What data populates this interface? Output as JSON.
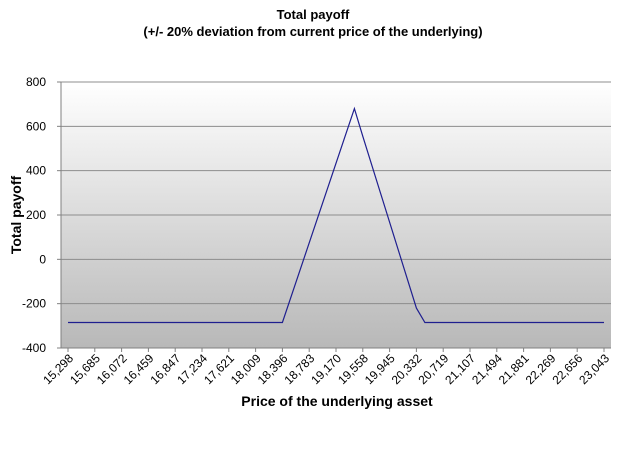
{
  "chart_data": {
    "type": "line",
    "title": "Total payoff",
    "subtitle": "(+/- 20% deviation from current price of the underlying)",
    "xlabel": "Price of the underlying asset",
    "ylabel": "Total payoff",
    "ylim": [
      -400,
      800
    ],
    "yticks": [
      "800",
      "600",
      "400",
      "200",
      "0",
      "-200",
      "-400"
    ],
    "categories": [
      "15,298",
      "15,685",
      "16,072",
      "16,459",
      "16,847",
      "17,234",
      "17,621",
      "18,009",
      "18,396",
      "18,783",
      "19,170",
      "19,558",
      "19,945",
      "20,332",
      "20,719",
      "21,107",
      "21,494",
      "21,881",
      "22,269",
      "22,656",
      "23,043"
    ],
    "points": [
      {
        "x": 15298,
        "y": -285
      },
      {
        "x": 18396,
        "y": -285
      },
      {
        "x": 19437,
        "y": 680
      },
      {
        "x": 19558,
        "y": 555
      },
      {
        "x": 20332,
        "y": -220
      },
      {
        "x": 20455,
        "y": -285
      },
      {
        "x": 23043,
        "y": -285
      }
    ],
    "grid": true,
    "colors": {
      "line": "#1f1f8f",
      "plot_top": "#ffffff",
      "plot_bottom": "#b8b8b8",
      "grid": "#8c8c8c"
    }
  }
}
